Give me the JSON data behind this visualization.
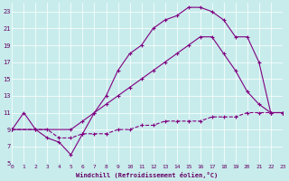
{
  "xlabel": "Windchill (Refroidissement éolien,°C)",
  "background_color": "#c8ecec",
  "line_color": "#800080",
  "xlim": [
    0,
    23
  ],
  "ylim": [
    5,
    24
  ],
  "yticks": [
    5,
    7,
    9,
    11,
    13,
    15,
    17,
    19,
    21,
    23
  ],
  "xticks": [
    0,
    1,
    2,
    3,
    4,
    5,
    6,
    7,
    8,
    9,
    10,
    11,
    12,
    13,
    14,
    15,
    16,
    17,
    18,
    19,
    20,
    21,
    22,
    23
  ],
  "line1_x": [
    0,
    1,
    2,
    3,
    4,
    5,
    6,
    7,
    8,
    9,
    10,
    11,
    12,
    13,
    14,
    15,
    16,
    17,
    18,
    19,
    20,
    21,
    22,
    23
  ],
  "line1_y": [
    9,
    11,
    9,
    8,
    7.5,
    6,
    8.5,
    11,
    13,
    16,
    18,
    19,
    21,
    22,
    22.5,
    23.5,
    23.5,
    23,
    22,
    20,
    20,
    17,
    11,
    11
  ],
  "line2_x": [
    0,
    5,
    6,
    7,
    8,
    9,
    10,
    11,
    12,
    13,
    14,
    15,
    16,
    17,
    18,
    19,
    20,
    21,
    22,
    23
  ],
  "line2_y": [
    9,
    9,
    10,
    11,
    12,
    13,
    14,
    15,
    16,
    17,
    18,
    19,
    20,
    20,
    18,
    16,
    13.5,
    12,
    11,
    11
  ],
  "line3_x": [
    0,
    2,
    3,
    4,
    5,
    6,
    7,
    8,
    9,
    10,
    11,
    12,
    13,
    14,
    15,
    16,
    17,
    18,
    19,
    20,
    21,
    22,
    23
  ],
  "line3_y": [
    9,
    9,
    9,
    8,
    8,
    8.5,
    8.5,
    8.5,
    9,
    9,
    9.5,
    9.5,
    10,
    10,
    10,
    10,
    10.5,
    10.5,
    10.5,
    11,
    11,
    11,
    11
  ]
}
